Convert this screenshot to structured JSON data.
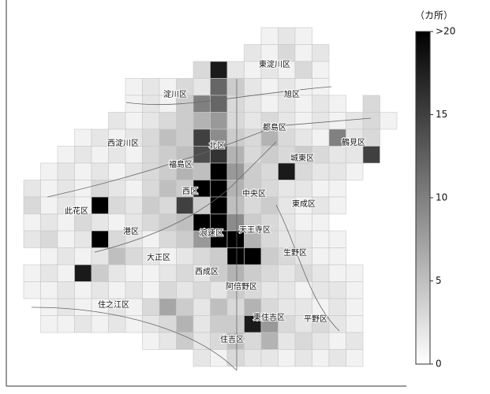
{
  "unit_label": "（カ所）",
  "colorbar": {
    "range": [
      0,
      20
    ],
    "ticks": [
      0,
      5,
      10,
      15,
      {
        "value": 20,
        "label": ">20"
      }
    ]
  },
  "wards": [
    "東淀川区",
    "淀川区",
    "旭区",
    "都島区",
    "西淀川区",
    "北区",
    "鶴見区",
    "福島区",
    "城東区",
    "西区",
    "中央区",
    "此花区",
    "東成区",
    "港区",
    "浪速区",
    "天王寺区",
    "大正区",
    "生野区",
    "西成区",
    "阿倍野区",
    "住之江区",
    "東住吉区",
    "平野区",
    "住吉区"
  ],
  "cells": [
    [
      null,
      null,
      null,
      null,
      null,
      null,
      null,
      null,
      null,
      null,
      null,
      null,
      null,
      null,
      1,
      2,
      1,
      null,
      null,
      null,
      null,
      null
    ],
    [
      null,
      null,
      null,
      null,
      null,
      null,
      null,
      null,
      null,
      null,
      null,
      null,
      null,
      2,
      1,
      3,
      1,
      2,
      null,
      null,
      null,
      null
    ],
    [
      null,
      null,
      null,
      null,
      null,
      null,
      null,
      null,
      null,
      null,
      3,
      18,
      2,
      1,
      2,
      1,
      3,
      1,
      null,
      null,
      null,
      null
    ],
    [
      null,
      null,
      null,
      null,
      null,
      null,
      1,
      2,
      1,
      3,
      2,
      12,
      4,
      2,
      1,
      2,
      1,
      1,
      null,
      null,
      null,
      null
    ],
    [
      null,
      null,
      null,
      null,
      null,
      null,
      1,
      2,
      1,
      4,
      10,
      12,
      3,
      2,
      1,
      2,
      1,
      2,
      1,
      null,
      3,
      null
    ],
    [
      null,
      null,
      null,
      null,
      null,
      2,
      1,
      2,
      3,
      4,
      6,
      8,
      3,
      2,
      3,
      2,
      1,
      2,
      1,
      2,
      3,
      1
    ],
    [
      null,
      null,
      null,
      1,
      2,
      1,
      2,
      3,
      5,
      4,
      15,
      9,
      4,
      3,
      6,
      3,
      2,
      1,
      10,
      2,
      3,
      null
    ],
    [
      null,
      null,
      1,
      2,
      1,
      2,
      1,
      3,
      4,
      5,
      14,
      16,
      6,
      3,
      4,
      3,
      4,
      3,
      2,
      2,
      15,
      null
    ],
    [
      null,
      1,
      2,
      1,
      2,
      1,
      2,
      3,
      4,
      6,
      5,
      20,
      8,
      4,
      3,
      18,
      3,
      2,
      2,
      1,
      null,
      null
    ],
    [
      2,
      1,
      2,
      1,
      3,
      2,
      1,
      3,
      5,
      4,
      20,
      20,
      6,
      4,
      3,
      2,
      2,
      1,
      1,
      null,
      null,
      null
    ],
    [
      3,
      1,
      2,
      1,
      20,
      3,
      2,
      4,
      3,
      15,
      4,
      20,
      5,
      3,
      4,
      2,
      1,
      2,
      1,
      null,
      null,
      null
    ],
    [
      1,
      2,
      1,
      3,
      2,
      1,
      2,
      3,
      4,
      5,
      20,
      20,
      9,
      4,
      3,
      2,
      1,
      1,
      null,
      null,
      null,
      null
    ],
    [
      2,
      3,
      1,
      2,
      20,
      3,
      2,
      1,
      3,
      4,
      8,
      20,
      20,
      6,
      3,
      2,
      2,
      1,
      1,
      null,
      null,
      null
    ],
    [
      null,
      1,
      2,
      1,
      2,
      5,
      3,
      2,
      1,
      2,
      3,
      4,
      20,
      20,
      4,
      3,
      2,
      1,
      1,
      null,
      null,
      null
    ],
    [
      1,
      2,
      1,
      18,
      4,
      2,
      1,
      1,
      2,
      3,
      2,
      4,
      6,
      4,
      3,
      2,
      3,
      2,
      1,
      1,
      null,
      null
    ],
    [
      1,
      1,
      2,
      1,
      2,
      1,
      2,
      1,
      3,
      2,
      3,
      2,
      4,
      3,
      2,
      2,
      1,
      2,
      2,
      1,
      null,
      null
    ],
    [
      null,
      1,
      2,
      1,
      1,
      2,
      1,
      3,
      7,
      4,
      2,
      5,
      3,
      6,
      3,
      2,
      2,
      1,
      2,
      1,
      null,
      null
    ],
    [
      null,
      1,
      1,
      2,
      1,
      2,
      1,
      2,
      3,
      6,
      2,
      4,
      4,
      18,
      8,
      3,
      2,
      3,
      2,
      1,
      null,
      null
    ],
    [
      null,
      null,
      null,
      null,
      null,
      null,
      null,
      1,
      2,
      4,
      2,
      3,
      5,
      3,
      6,
      2,
      3,
      2,
      1,
      2,
      null,
      null
    ],
    [
      null,
      null,
      null,
      null,
      null,
      null,
      null,
      null,
      null,
      null,
      2,
      1,
      3,
      2,
      2,
      1,
      2,
      1,
      2,
      1,
      null,
      null
    ]
  ]
}
